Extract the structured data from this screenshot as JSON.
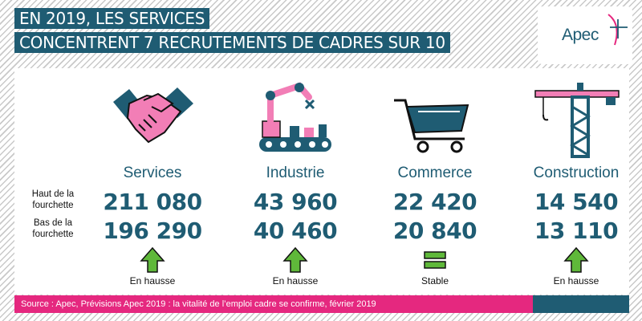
{
  "title": {
    "line1": "EN 2019, LES SERVICES",
    "line2": "CONCENTRENT 7 RECRUTEMENTS DE CADRES SUR 10"
  },
  "logo": {
    "text": "Apec"
  },
  "row_labels": {
    "high": "Haut de la fourchette",
    "low": "Bas de la fourchette"
  },
  "sectors": [
    {
      "name": "Services",
      "high": "211 080",
      "low": "196 290",
      "trend": "En hausse",
      "icon": "handshake-icon",
      "trend_icon": "arrow-up-icon"
    },
    {
      "name": "Industrie",
      "high": "43 960",
      "low": "40 460",
      "trend": "En hausse",
      "icon": "robot-arm-icon",
      "trend_icon": "arrow-up-icon"
    },
    {
      "name": "Commerce",
      "high": "22 420",
      "low": "20 840",
      "trend": "Stable",
      "icon": "shopping-cart-icon",
      "trend_icon": "equals-icon"
    },
    {
      "name": "Construction",
      "high": "14 540",
      "low": "13 110",
      "trend": "En hausse",
      "icon": "crane-icon",
      "trend_icon": "arrow-up-icon"
    }
  ],
  "source": "Source : Apec, Prévisions Apec 2019 : la vitalité de l’emploi cadre se confirme, février 2019",
  "colors": {
    "navy": "#1f5c73",
    "pink": "#e5287f",
    "icon_pink": "#f27eb6",
    "green": "#5fb83a"
  }
}
